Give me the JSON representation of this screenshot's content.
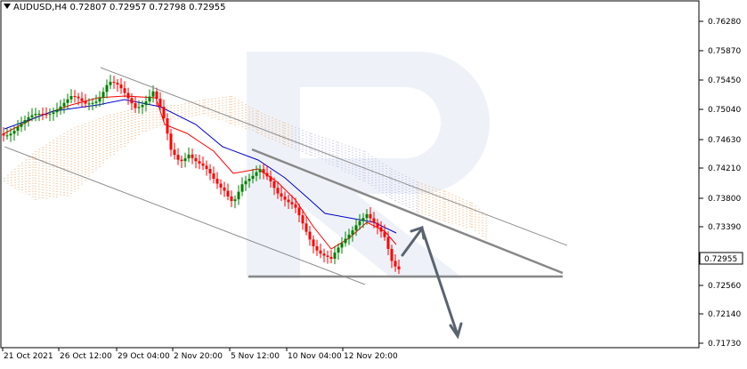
{
  "header": {
    "symbol": "AUDUSD,H4",
    "ohlc": "0.72807 0.72957 0.72798 0.72955"
  },
  "chart_data": {
    "type": "candlestick",
    "y_ticks": [
      "0.76280",
      "0.75870",
      "0.75450",
      "0.75040",
      "0.74630",
      "0.74210",
      "0.73800",
      "0.73390",
      "0.72955",
      "0.72560",
      "0.72140",
      "0.71730"
    ],
    "y_tick_values": [
      0.7628,
      0.7587,
      0.7545,
      0.7504,
      0.7463,
      0.7421,
      0.738,
      0.7339,
      0.72955,
      0.7256,
      0.7214,
      0.7173
    ],
    "x_ticks": [
      "21 Oct 2021",
      "26 Oct 12:00",
      "29 Oct 04:00",
      "2 Nov 20:00",
      "5 Nov 12:00",
      "10 Nov 04:00",
      "12 Nov 20:00"
    ],
    "current_price": "0.72955",
    "colors": {
      "bull": "#008000",
      "bear": "#ff0000",
      "tenkan": "#ff0000",
      "kijun": "#0000cc",
      "cloud": "#f4a460",
      "cloud_alt": "#b0b0e0",
      "lines": "#808080",
      "watermark": "#eef2f8"
    }
  }
}
